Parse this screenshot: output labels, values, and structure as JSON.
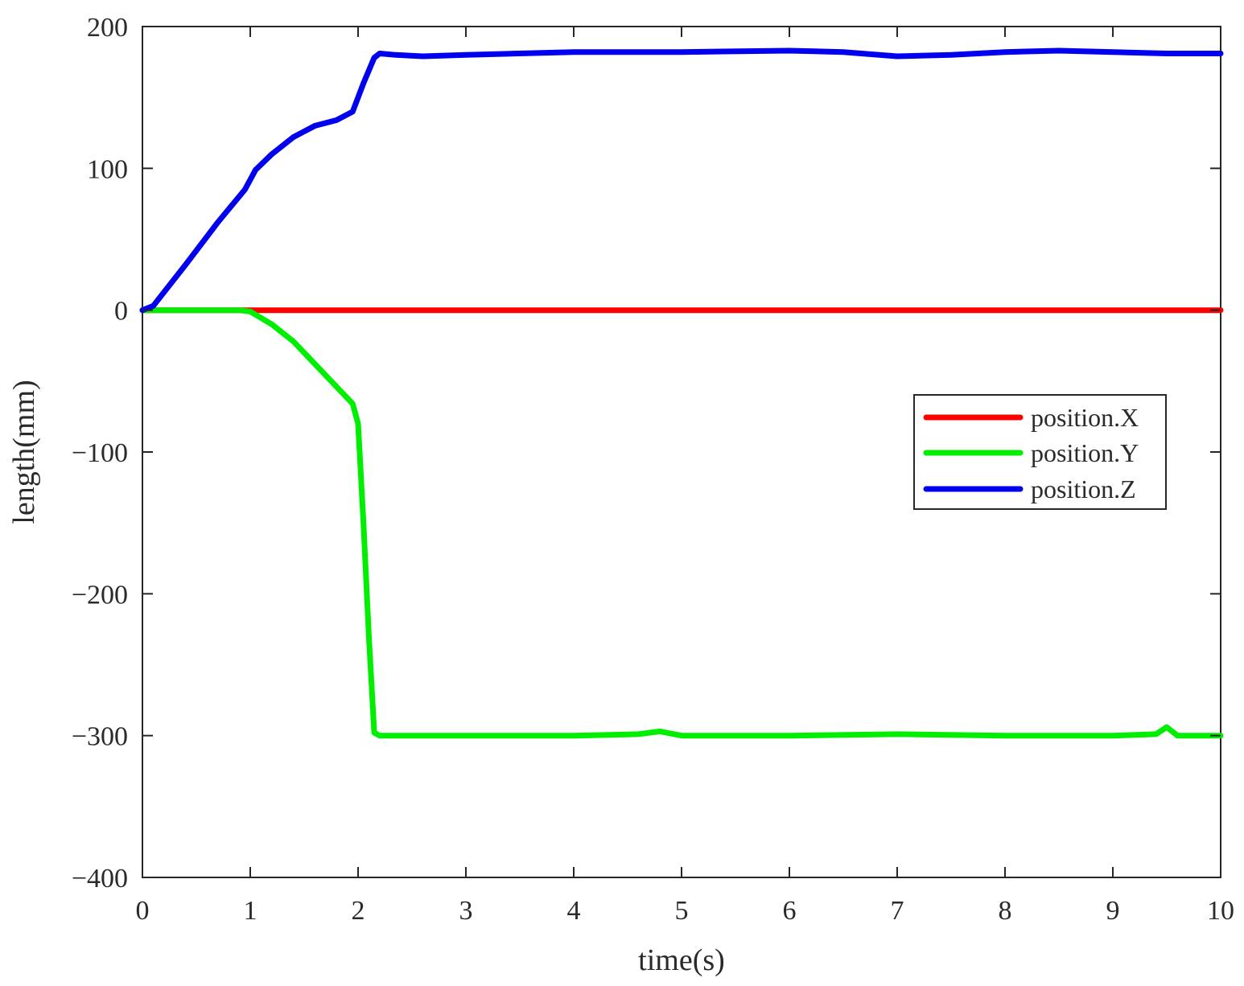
{
  "chart_data": {
    "type": "line",
    "title": "",
    "xlabel": "time(s)",
    "ylabel": "length(mm)",
    "xlim": [
      0,
      10
    ],
    "ylim": [
      -400,
      200
    ],
    "x_ticks": [
      0,
      1,
      2,
      3,
      4,
      5,
      6,
      7,
      8,
      9,
      10
    ],
    "y_ticks": [
      -400,
      -300,
      -200,
      -100,
      0,
      100,
      200
    ],
    "x_tick_labels": [
      "0",
      "1",
      "2",
      "3",
      "4",
      "5",
      "6",
      "7",
      "8",
      "9",
      "10"
    ],
    "y_tick_labels": [
      "−400",
      "−300",
      "−200",
      "−100",
      "0",
      "100",
      "200"
    ],
    "grid": false,
    "legend_position": "right",
    "series": [
      {
        "name": "position.X",
        "color": "#ff0000",
        "x": [
          0,
          1,
          2,
          3,
          4,
          5,
          6,
          7,
          8,
          9,
          10
        ],
        "y": [
          0,
          0,
          0,
          0,
          0,
          0,
          0,
          0,
          0,
          0,
          0
        ]
      },
      {
        "name": "position.Y",
        "color": "#00ee00",
        "x": [
          0,
          0.5,
          0.9,
          1.0,
          1.2,
          1.4,
          1.6,
          1.8,
          1.95,
          2.0,
          2.05,
          2.1,
          2.15,
          2.2,
          2.5,
          3,
          4,
          4.6,
          4.8,
          5,
          6,
          7,
          8,
          9,
          9.4,
          9.5,
          9.6,
          10
        ],
        "y": [
          0,
          0,
          0,
          -1,
          -10,
          -22,
          -38,
          -54,
          -66,
          -80,
          -150,
          -230,
          -298,
          -300,
          -300,
          -300,
          -300,
          -299,
          -297,
          -300,
          -300,
          -299,
          -300,
          -300,
          -299,
          -294,
          -300,
          -300
        ]
      },
      {
        "name": "position.Z",
        "color": "#0000ee",
        "x": [
          0,
          0.1,
          0.4,
          0.7,
          0.95,
          1.05,
          1.2,
          1.4,
          1.6,
          1.8,
          1.95,
          2.05,
          2.15,
          2.2,
          2.35,
          2.6,
          3,
          4,
          5,
          6,
          6.5,
          7,
          7.5,
          8,
          8.5,
          9,
          9.5,
          10
        ],
        "y": [
          0,
          3,
          32,
          62,
          85,
          99,
          110,
          122,
          130,
          134,
          140,
          160,
          178,
          181,
          180,
          179,
          180,
          182,
          182,
          183,
          182,
          179,
          180,
          182,
          183,
          182,
          181,
          181
        ]
      }
    ]
  }
}
